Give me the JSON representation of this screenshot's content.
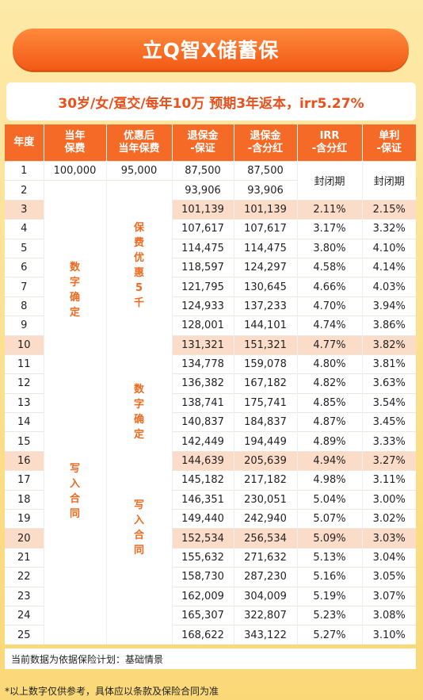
{
  "title": "立Q智X储蓄保",
  "subtitle": "30岁/女/趸交/每年10万  预期3年返本，irr5.27%",
  "table": {
    "headers": [
      "年度",
      "当年\n保费",
      "优惠后\n当年保费",
      "退保金\n-保证",
      "退保金\n-含分红",
      "IRR\n-含分红",
      "单利\n-保证"
    ],
    "rows": [
      {
        "year": "1",
        "premium": "100,000",
        "discounted": "95,000",
        "guaranteed": "87,500",
        "with_bonus": "87,500",
        "irr": "",
        "simple": ""
      },
      {
        "year": "2",
        "premium": "",
        "discounted": "",
        "guaranteed": "93,906",
        "with_bonus": "93,906",
        "irr": "",
        "simple": ""
      },
      {
        "year": "3",
        "guaranteed": "101,139",
        "with_bonus": "101,139",
        "irr": "2.11%",
        "simple": "2.15%",
        "highlight": true
      },
      {
        "year": "4",
        "guaranteed": "107,617",
        "with_bonus": "107,617",
        "irr": "3.17%",
        "simple": "3.32%"
      },
      {
        "year": "5",
        "guaranteed": "114,475",
        "with_bonus": "114,475",
        "irr": "3.80%",
        "simple": "4.10%"
      },
      {
        "year": "6",
        "guaranteed": "118,597",
        "with_bonus": "124,297",
        "irr": "4.58%",
        "simple": "4.14%"
      },
      {
        "year": "7",
        "guaranteed": "121,795",
        "with_bonus": "130,645",
        "irr": "4.66%",
        "simple": "4.03%"
      },
      {
        "year": "8",
        "guaranteed": "124,933",
        "with_bonus": "137,233",
        "irr": "4.70%",
        "simple": "3.94%"
      },
      {
        "year": "9",
        "guaranteed": "128,001",
        "with_bonus": "144,101",
        "irr": "4.74%",
        "simple": "3.86%"
      },
      {
        "year": "10",
        "guaranteed": "131,321",
        "with_bonus": "151,321",
        "irr": "4.77%",
        "simple": "3.82%",
        "highlight": true
      },
      {
        "year": "11",
        "guaranteed": "134,778",
        "with_bonus": "159,078",
        "irr": "4.80%",
        "simple": "3.81%"
      },
      {
        "year": "12",
        "guaranteed": "136,382",
        "with_bonus": "167,182",
        "irr": "4.82%",
        "simple": "3.63%"
      },
      {
        "year": "13",
        "guaranteed": "138,741",
        "with_bonus": "175,741",
        "irr": "4.85%",
        "simple": "3.54%"
      },
      {
        "year": "14",
        "guaranteed": "140,837",
        "with_bonus": "184,837",
        "irr": "4.87%",
        "simple": "3.45%"
      },
      {
        "year": "15",
        "guaranteed": "142,449",
        "with_bonus": "194,449",
        "irr": "4.89%",
        "simple": "3.33%"
      },
      {
        "year": "16",
        "guaranteed": "144,639",
        "with_bonus": "205,639",
        "irr": "4.94%",
        "simple": "3.27%",
        "highlight": true
      },
      {
        "year": "17",
        "guaranteed": "145,182",
        "with_bonus": "217,182",
        "irr": "4.98%",
        "simple": "3.11%"
      },
      {
        "year": "18",
        "guaranteed": "146,351",
        "with_bonus": "230,051",
        "irr": "5.04%",
        "simple": "3.00%"
      },
      {
        "year": "19",
        "guaranteed": "149,440",
        "with_bonus": "242,940",
        "irr": "5.07%",
        "simple": "3.02%"
      },
      {
        "year": "20",
        "guaranteed": "152,534",
        "with_bonus": "256,534",
        "irr": "5.09%",
        "simple": "3.03%",
        "highlight": true
      },
      {
        "year": "21",
        "guaranteed": "155,632",
        "with_bonus": "271,632",
        "irr": "5.13%",
        "simple": "3.04%"
      },
      {
        "year": "22",
        "guaranteed": "158,730",
        "with_bonus": "287,230",
        "irr": "5.16%",
        "simple": "3.05%"
      },
      {
        "year": "23",
        "guaranteed": "162,009",
        "with_bonus": "304,009",
        "irr": "5.19%",
        "simple": "3.07%"
      },
      {
        "year": "24",
        "guaranteed": "165,307",
        "with_bonus": "322,807",
        "irr": "5.23%",
        "simple": "3.08%"
      },
      {
        "year": "25",
        "guaranteed": "168,622",
        "with_bonus": "343,122",
        "irr": "5.27%",
        "simple": "3.10%"
      }
    ],
    "closed_label_irr": "封闭期",
    "closed_label_simple": "封闭期",
    "premium_col_note_1": "数字确定",
    "premium_col_note_2": "写入合同",
    "discount_col_note_1": "保费优惠5千",
    "discount_col_note_2": "数字确定",
    "discount_col_note_3": "写入合同"
  },
  "footer_note": "当前数据为依据保险计划：基础情景",
  "disclaimer": "*以上数字仅供参考，具体应以条款及保险合同为准"
}
